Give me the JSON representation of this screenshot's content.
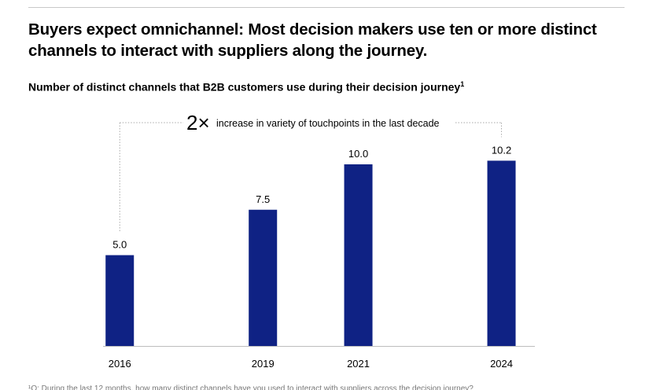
{
  "header": {
    "title": "Buyers expect omnichannel: Most decision makers use ten or more distinct channels to interact with suppliers along the journey."
  },
  "chart_data": {
    "type": "bar",
    "title": "Number of distinct channels that B2B customers use during their decision journey",
    "title_footnote_marker": "1",
    "x": [
      2016,
      2019,
      2021,
      2024
    ],
    "categories": [
      "2016",
      "2019",
      "2021",
      "2024"
    ],
    "values": [
      5.0,
      7.5,
      10.0,
      10.2
    ],
    "value_labels": [
      "5.0",
      "7.5",
      "10.0",
      "10.2"
    ],
    "xlabel": "",
    "ylabel": "",
    "ylim": [
      0,
      12.5
    ],
    "grid": false,
    "bar_color": "#0f2284",
    "annotation": {
      "big": "2×",
      "text": "increase in variety of touchpoints in the last decade",
      "from": 2016,
      "to": 2024
    }
  },
  "footnote": "¹Q: During the last 12 months, how many distinct channels have you used to interact with suppliers across the decision journey?"
}
